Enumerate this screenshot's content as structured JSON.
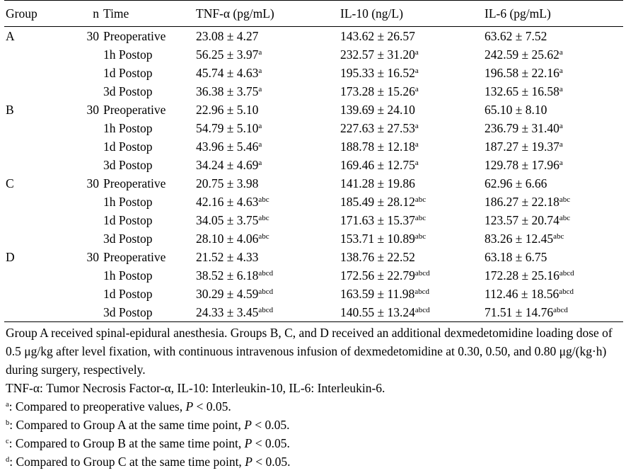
{
  "table": {
    "headers": {
      "group": "Group",
      "n": "n",
      "time": "Time",
      "tnf": "TNF-α (pg/mL)",
      "il10": "IL-10 (ng/L)",
      "il6": "IL-6 (pg/mL)"
    },
    "rows": [
      {
        "group": "A",
        "n": "30",
        "time": "Preoperative",
        "tnf": "23.08 ± 4.27",
        "tnf_sup": "",
        "il10": "143.62 ± 26.57",
        "il10_sup": "",
        "il6": "63.62 ± 7.52",
        "il6_sup": ""
      },
      {
        "group": "",
        "n": "",
        "time": "1h Postop",
        "tnf": "56.25 ± 3.97",
        "tnf_sup": "a",
        "il10": "232.57 ± 31.20",
        "il10_sup": "a",
        "il6": "242.59 ± 25.62",
        "il6_sup": "a"
      },
      {
        "group": "",
        "n": "",
        "time": "1d Postop",
        "tnf": "45.74 ± 4.63",
        "tnf_sup": "a",
        "il10": "195.33 ± 16.52",
        "il10_sup": "a",
        "il6": "196.58 ± 22.16",
        "il6_sup": "a"
      },
      {
        "group": "",
        "n": "",
        "time": "3d Postop",
        "tnf": "36.38 ± 3.75",
        "tnf_sup": "a",
        "il10": "173.28 ± 15.26",
        "il10_sup": "a",
        "il6": "132.65 ± 16.58",
        "il6_sup": "a"
      },
      {
        "group": "B",
        "n": "30",
        "time": "Preoperative",
        "tnf": "22.96 ± 5.10",
        "tnf_sup": "",
        "il10": "139.69 ± 24.10",
        "il10_sup": "",
        "il6": "65.10 ± 8.10",
        "il6_sup": ""
      },
      {
        "group": "",
        "n": "",
        "time": "1h Postop",
        "tnf": "54.79 ± 5.10",
        "tnf_sup": "a",
        "il10": "227.63 ± 27.53",
        "il10_sup": "a",
        "il6": "236.79 ± 31.40",
        "il6_sup": "a"
      },
      {
        "group": "",
        "n": "",
        "time": "1d Postop",
        "tnf": "43.96 ± 5.46",
        "tnf_sup": "a",
        "il10": "188.78 ± 12.18",
        "il10_sup": "a",
        "il6": "187.27 ± 19.37",
        "il6_sup": "a"
      },
      {
        "group": "",
        "n": "",
        "time": "3d Postop",
        "tnf": "34.24 ± 4.69",
        "tnf_sup": "a",
        "il10": "169.46 ± 12.75",
        "il10_sup": "a",
        "il6": "129.78 ± 17.96",
        "il6_sup": "a"
      },
      {
        "group": "C",
        "n": "30",
        "time": "Preoperative",
        "tnf": "20.75 ± 3.98",
        "tnf_sup": "",
        "il10": "141.28 ± 19.86",
        "il10_sup": "",
        "il6": "62.96 ± 6.66",
        "il6_sup": ""
      },
      {
        "group": "",
        "n": "",
        "time": "1h Postop",
        "tnf": "42.16 ± 4.63",
        "tnf_sup": "abc",
        "il10": "185.49 ± 28.12",
        "il10_sup": "abc",
        "il6": "186.27 ± 22.18",
        "il6_sup": "abc"
      },
      {
        "group": "",
        "n": "",
        "time": "1d Postop",
        "tnf": "34.05 ± 3.75",
        "tnf_sup": "abc",
        "il10": "171.63 ± 15.37",
        "il10_sup": "abc",
        "il6": "123.57 ± 20.74",
        "il6_sup": "abc"
      },
      {
        "group": "",
        "n": "",
        "time": "3d Postop",
        "tnf": "28.10 ± 4.06",
        "tnf_sup": "abc",
        "il10": "153.71 ± 10.89",
        "il10_sup": "abc",
        "il6": "83.26 ± 12.45",
        "il6_sup": "abc"
      },
      {
        "group": "D",
        "n": "30",
        "time": "Preoperative",
        "tnf": "21.52 ± 4.33",
        "tnf_sup": "",
        "il10": "138.76 ± 22.52",
        "il10_sup": "",
        "il6": "63.18 ± 6.75",
        "il6_sup": ""
      },
      {
        "group": "",
        "n": "",
        "time": "1h Postop",
        "tnf": "38.52 ± 6.18",
        "tnf_sup": "abcd",
        "il10": "172.56 ± 22.79",
        "il10_sup": "abcd",
        "il6": "172.28 ± 25.16",
        "il6_sup": "abcd"
      },
      {
        "group": "",
        "n": "",
        "time": "1d Postop",
        "tnf": "30.29 ± 4.59",
        "tnf_sup": "abcd",
        "il10": "163.59 ± 11.98",
        "il10_sup": "abcd",
        "il6": "112.46 ± 18.56",
        "il6_sup": "abcd"
      },
      {
        "group": "",
        "n": "",
        "time": "3d Postop",
        "tnf": "24.33 ± 3.45",
        "tnf_sup": "abcd",
        "il10": "140.55 ± 13.24",
        "il10_sup": "abcd",
        "il6": "71.51 ± 14.76",
        "il6_sup": "abcd"
      }
    ]
  },
  "notes": {
    "description": "Group A received spinal-epidural anesthesia. Groups B, C, and D received an additional dexmedetomidine loading dose of 0.5 μg/kg after level fixation, with continuous intravenous infusion of dexmedetomidine at 0.30, 0.50, and 0.80 μg/(kg·h) during surgery, respectively.",
    "abbreviations": "TNF-α: Tumor Necrosis Factor-α, IL-10: Interleukin-10, IL-6: Interleukin-6.",
    "footnotes": [
      {
        "mark": "a",
        "text": ": Compared to preoperative values, ",
        "p_label": "P",
        "tail": " < 0.05."
      },
      {
        "mark": "b",
        "text": ": Compared to Group A at the same time point, ",
        "p_label": "P",
        "tail": " < 0.05."
      },
      {
        "mark": "c",
        "text": ": Compared to Group B at the same time point, ",
        "p_label": "P",
        "tail": " < 0.05."
      },
      {
        "mark": "d",
        "text": ": Compared to Group C at the same time point, ",
        "p_label": "P",
        "tail": " < 0.05."
      }
    ]
  }
}
